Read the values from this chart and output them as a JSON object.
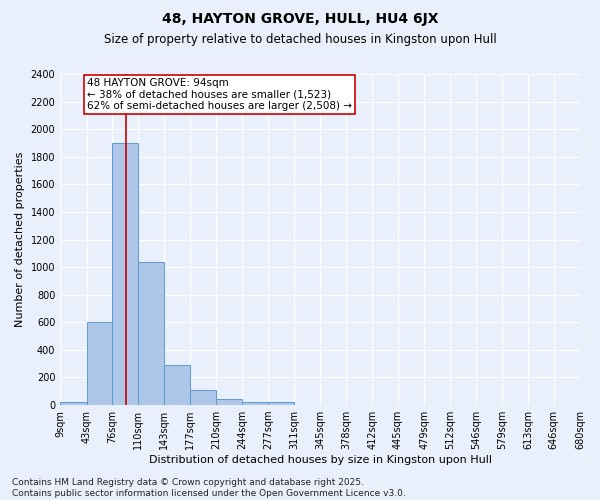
{
  "title": "48, HAYTON GROVE, HULL, HU4 6JX",
  "subtitle": "Size of property relative to detached houses in Kingston upon Hull",
  "xlabel": "Distribution of detached houses by size in Kingston upon Hull",
  "ylabel": "Number of detached properties",
  "bin_edges": [
    9,
    43,
    76,
    110,
    143,
    177,
    210,
    244,
    277,
    311,
    345,
    378,
    412,
    445,
    479,
    512,
    546,
    579,
    613,
    646,
    680
  ],
  "bar_heights": [
    20,
    600,
    1900,
    1040,
    290,
    110,
    45,
    25,
    20,
    0,
    0,
    0,
    0,
    0,
    0,
    0,
    0,
    0,
    0,
    0
  ],
  "bar_color": "#aec6e8",
  "bar_edge_color": "#5b9bd5",
  "red_line_x": 94,
  "red_line_color": "#cc0000",
  "annotation_line1": "48 HAYTON GROVE: 94sqm",
  "annotation_line2": "← 38% of detached houses are smaller (1,523)",
  "annotation_line3": "62% of semi-detached houses are larger (2,508) →",
  "annotation_box_color": "#ffffff",
  "annotation_box_edge": "#cc0000",
  "annotation_fontsize": 7.5,
  "ylim": [
    0,
    2400
  ],
  "yticks": [
    0,
    200,
    400,
    600,
    800,
    1000,
    1200,
    1400,
    1600,
    1800,
    2000,
    2200,
    2400
  ],
  "bg_color": "#eaf0fb",
  "title_fontsize": 10,
  "subtitle_fontsize": 8.5,
  "xlabel_fontsize": 8,
  "ylabel_fontsize": 8,
  "tick_fontsize": 7,
  "footer_text": "Contains HM Land Registry data © Crown copyright and database right 2025.\nContains public sector information licensed under the Open Government Licence v3.0.",
  "footer_fontsize": 6.5
}
